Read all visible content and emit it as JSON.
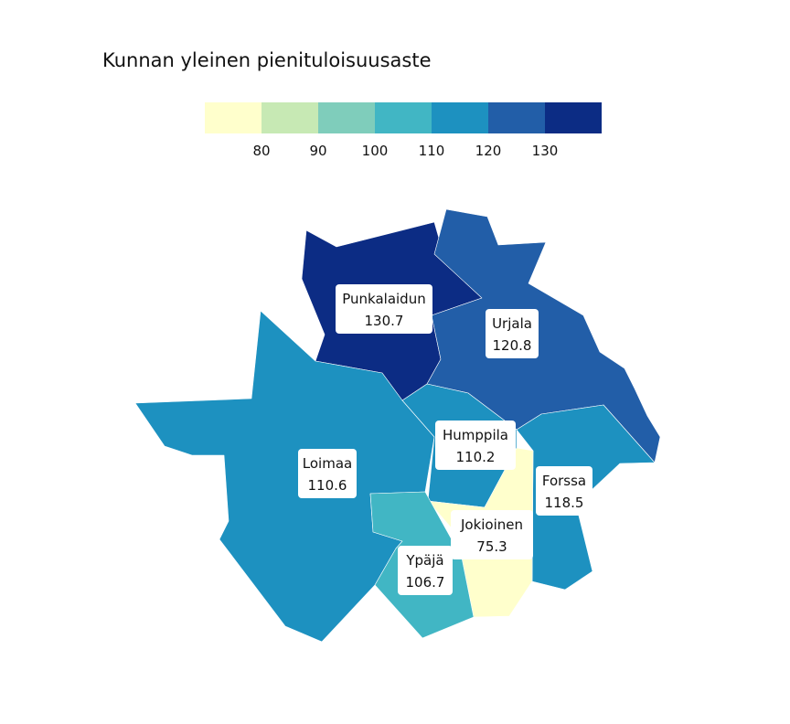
{
  "title": "Kunnan yleinen pienituloisuusaste",
  "legend": {
    "breaks": [
      80,
      90,
      100,
      110,
      120,
      130
    ],
    "tick_labels": [
      "80",
      "90",
      "100",
      "110",
      "120",
      "130"
    ],
    "colors": [
      "#ffffcc",
      "#c7e9b4",
      "#7fcdbb",
      "#41b6c4",
      "#1d91c0",
      "#225ea8",
      "#0c2c84"
    ]
  },
  "regions": [
    {
      "name": "Punkalaidun",
      "value": 130.7,
      "value_label": "130.7",
      "color": "#0c2c84"
    },
    {
      "name": "Urjala",
      "value": 120.8,
      "value_label": "120.8",
      "color": "#225ea8"
    },
    {
      "name": "Loimaa",
      "value": 110.6,
      "value_label": "110.6",
      "color": "#1d91c0"
    },
    {
      "name": "Humppila",
      "value": 110.2,
      "value_label": "110.2",
      "color": "#1d91c0"
    },
    {
      "name": "Forssa",
      "value": 118.5,
      "value_label": "118.5",
      "color": "#1d91c0"
    },
    {
      "name": "Jokioinen",
      "value": 75.3,
      "value_label": "75.3",
      "color": "#ffffcc"
    },
    {
      "name": "Ypäjä",
      "value": 106.7,
      "value_label": "106.7",
      "color": "#41b6c4"
    }
  ]
}
